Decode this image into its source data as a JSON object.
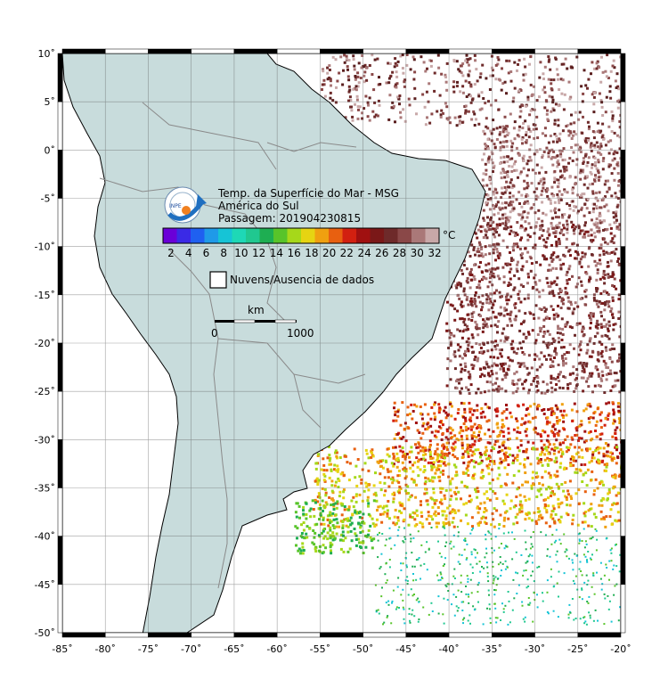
{
  "title": {
    "line1": "Temp. da Superfície do Mar - MSG",
    "line2": "América do Sul",
    "line3": "Passagem: 201904230815"
  },
  "logo": {
    "text": "INPE"
  },
  "colorbar": {
    "unit": "°C",
    "ticks": [
      "2",
      "4",
      "6",
      "8",
      "10",
      "12",
      "14",
      "16",
      "18",
      "20",
      "22",
      "24",
      "26",
      "28",
      "30",
      "32"
    ],
    "colors": [
      "#6a00d8",
      "#3a2ae6",
      "#1f60f0",
      "#1f9ae8",
      "#16c4d6",
      "#1ed8b6",
      "#20c890",
      "#1eae52",
      "#58c42a",
      "#a6d81a",
      "#e6d412",
      "#f0a010",
      "#e86010",
      "#d22010",
      "#a01010",
      "#7a1818",
      "#6e2a2a",
      "#8a4848",
      "#aa7878",
      "#c8a8a8"
    ]
  },
  "cloud_legend": {
    "label": "Nuvens/Ausencia de dados"
  },
  "scalebar": {
    "unit": "km",
    "start": "0",
    "end": "1000"
  },
  "axes": {
    "x_labels": [
      "-85˚",
      "-80˚",
      "-75˚",
      "-70˚",
      "-65˚",
      "-60˚",
      "-55˚",
      "-50˚",
      "-45˚",
      "-40˚",
      "-35˚",
      "-30˚",
      "-25˚",
      "-20˚"
    ],
    "y_labels": [
      "10˚",
      "5˚",
      "0˚",
      "-5˚",
      "-10˚",
      "-15˚",
      "-20˚",
      "-25˚",
      "-30˚",
      "-35˚",
      "-40˚",
      "-45˚",
      "-50˚"
    ]
  },
  "map_extent": {
    "lon": [
      -85,
      -20
    ],
    "lat": [
      -50,
      10
    ]
  },
  "colors": {
    "land": "#c8dcdc",
    "ocean": "#ffffff",
    "border": "#8a8a8a",
    "coast": "#000000"
  }
}
